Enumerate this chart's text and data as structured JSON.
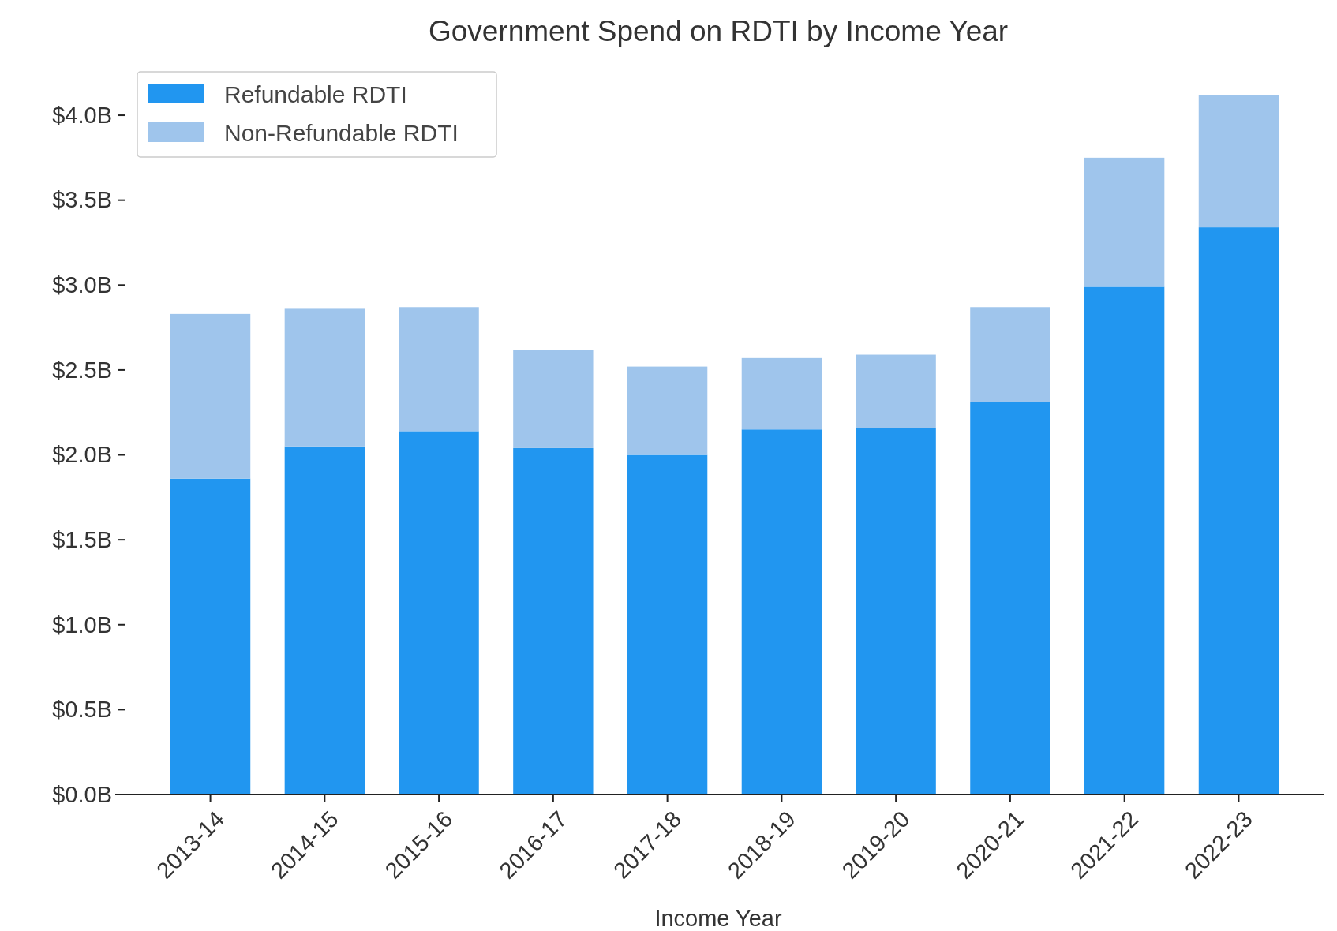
{
  "chart_data": {
    "type": "bar",
    "title": "Government Spend on RDTI by Income Year",
    "xlabel": "Income Year",
    "categories": [
      "2013-14",
      "2014-15",
      "2015-16",
      "2016-17",
      "2017-18",
      "2018-19",
      "2019-20",
      "2020-21",
      "2021-22",
      "2022-23"
    ],
    "series": [
      {
        "name": "Refundable RDTI",
        "color": "#2196f0",
        "values": [
          1.86,
          2.05,
          2.14,
          2.04,
          2.0,
          2.15,
          2.16,
          2.31,
          2.99,
          3.34
        ]
      },
      {
        "name": "Non-Refundable RDTI",
        "color": "#9fc5ec",
        "values": [
          0.97,
          0.81,
          0.73,
          0.58,
          0.52,
          0.42,
          0.43,
          0.56,
          0.76,
          0.78
        ]
      }
    ],
    "stacked": true,
    "ylim": [
      0,
      4.2
    ],
    "yticks": [
      {
        "value": 0,
        "label": "$0.0B"
      },
      {
        "value": 0.5,
        "label": "$0.5B"
      },
      {
        "value": 1,
        "label": "$1.0B"
      },
      {
        "value": 1.5,
        "label": "$1.5B"
      },
      {
        "value": 2,
        "label": "$2.0B"
      },
      {
        "value": 2.5,
        "label": "$2.5B"
      },
      {
        "value": 3,
        "label": "$3.0B"
      },
      {
        "value": 3.5,
        "label": "$3.5B"
      },
      {
        "value": 4,
        "label": "$4.0B"
      }
    ],
    "grid": false,
    "legend": "top left"
  }
}
